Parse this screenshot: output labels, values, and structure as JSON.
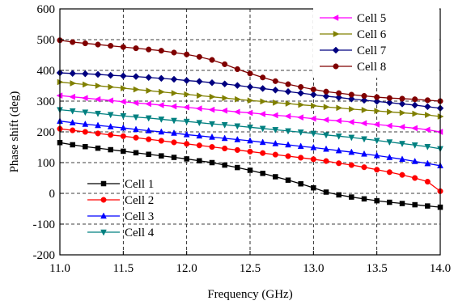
{
  "chart_data": {
    "type": "line",
    "xlabel": "Frequency (GHz)",
    "ylabel": "Phase shift (deg)",
    "xlim": [
      11.0,
      14.0
    ],
    "ylim": [
      -200,
      600
    ],
    "xticks": [
      11.0,
      11.5,
      12.0,
      12.5,
      13.0,
      13.5,
      14.0
    ],
    "xtick_labels": [
      "11.0",
      "11.5",
      "12.0",
      "12.5",
      "13.0",
      "13.5",
      "14.0"
    ],
    "yticks": [
      -200,
      -100,
      0,
      100,
      200,
      300,
      400,
      500,
      600
    ],
    "ytick_labels": [
      "-200",
      "-100",
      "0",
      "100",
      "200",
      "300",
      "400",
      "500",
      "600"
    ],
    "grid": "dashed",
    "legends": [
      {
        "placement": "bottom-left",
        "entries": [
          "Cell 1",
          "Cell 2",
          "Cell 3",
          "Cell 4"
        ]
      },
      {
        "placement": "top-right",
        "entries": [
          "Cell 5",
          "Cell 6",
          "Cell 7",
          "Cell 8"
        ]
      }
    ],
    "x": [
      11.0,
      11.1,
      11.2,
      11.3,
      11.4,
      11.5,
      11.6,
      11.7,
      11.8,
      11.9,
      12.0,
      12.1,
      12.2,
      12.3,
      12.4,
      12.5,
      12.6,
      12.7,
      12.8,
      12.9,
      13.0,
      13.1,
      13.2,
      13.3,
      13.4,
      13.5,
      13.6,
      13.7,
      13.8,
      13.9,
      14.0
    ],
    "series": [
      {
        "name": "Cell 1",
        "color": "#000000",
        "marker": "square",
        "values": [
          165,
          158,
          152,
          147,
          142,
          137,
          132,
          127,
          122,
          117,
          112,
          106,
          100,
          92,
          84,
          75,
          65,
          54,
          43,
          31,
          18,
          4,
          -5,
          -12,
          -18,
          -24,
          -29,
          -33,
          -37,
          -41,
          -45
        ]
      },
      {
        "name": "Cell 2",
        "color": "#ff0000",
        "marker": "circle",
        "values": [
          210,
          205,
          200,
          195,
          190,
          186,
          181,
          176,
          171,
          166,
          161,
          156,
          151,
          146,
          141,
          136,
          131,
          126,
          121,
          116,
          111,
          105,
          98,
          92,
          85,
          77,
          69,
          60,
          50,
          38,
          7
        ]
      },
      {
        "name": "Cell 3",
        "color": "#0000ff",
        "marker": "triangle-up",
        "values": [
          235,
          230,
          225,
          221,
          217,
          213,
          208,
          204,
          200,
          196,
          191,
          187,
          183,
          179,
          175,
          171,
          166,
          162,
          158,
          153,
          149,
          144,
          139,
          134,
          128,
          123,
          117,
          111,
          104,
          97,
          90
        ]
      },
      {
        "name": "Cell 4",
        "color": "#008080",
        "marker": "triangle-down",
        "values": [
          272,
          268,
          264,
          260,
          256,
          252,
          248,
          245,
          241,
          237,
          234,
          230,
          226,
          223,
          219,
          215,
          211,
          207,
          203,
          199,
          195,
          190,
          186,
          182,
          177,
          172,
          167,
          162,
          157,
          152,
          145
        ]
      },
      {
        "name": "Cell 5",
        "color": "#ff00ff",
        "marker": "triangle-left",
        "values": [
          318,
          314,
          310,
          306,
          302,
          298,
          294,
          291,
          287,
          283,
          280,
          276,
          272,
          269,
          265,
          262,
          258,
          254,
          251,
          247,
          243,
          239,
          236,
          232,
          228,
          224,
          220,
          216,
          212,
          207,
          200
        ]
      },
      {
        "name": "Cell 6",
        "color": "#808000",
        "marker": "triangle-right",
        "values": [
          362,
          358,
          354,
          350,
          346,
          342,
          338,
          334,
          330,
          326,
          322,
          318,
          314,
          310,
          306,
          302,
          299,
          295,
          292,
          288,
          285,
          281,
          278,
          274,
          271,
          268,
          265,
          262,
          259,
          255,
          250
        ]
      },
      {
        "name": "Cell 7",
        "color": "#000080",
        "marker": "diamond",
        "values": [
          392,
          390,
          389,
          387,
          384,
          382,
          380,
          377,
          374,
          371,
          367,
          364,
          360,
          356,
          351,
          346,
          341,
          336,
          331,
          326,
          321,
          316,
          312,
          307,
          303,
          299,
          295,
          291,
          287,
          282,
          277
        ]
      },
      {
        "name": "Cell 8",
        "color": "#800000",
        "marker": "circle",
        "values": [
          498,
          492,
          488,
          484,
          480,
          476,
          472,
          468,
          464,
          458,
          452,
          444,
          434,
          420,
          404,
          390,
          377,
          365,
          355,
          346,
          338,
          331,
          326,
          321,
          317,
          313,
          310,
          308,
          306,
          303,
          300
        ]
      }
    ]
  }
}
